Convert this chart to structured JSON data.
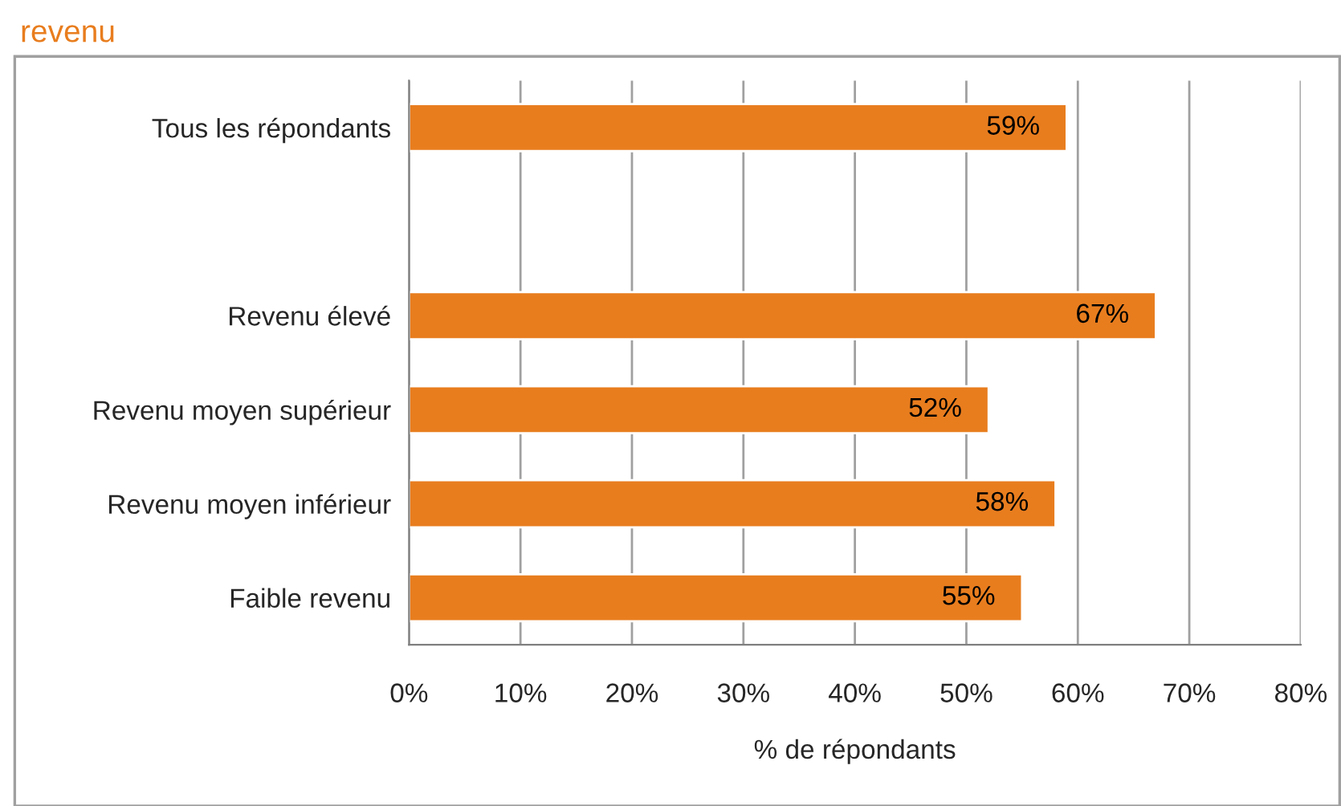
{
  "chart_data": {
    "type": "bar",
    "orientation": "horizontal",
    "title": "revenu",
    "xlabel": "% de répondants",
    "categories": [
      "Tous les répondants",
      null,
      "Revenu élevé",
      "Revenu moyen supérieur",
      "Revenu moyen inférieur",
      "Faible revenu"
    ],
    "values": [
      59,
      null,
      67,
      52,
      58,
      55
    ],
    "value_labels": [
      "59%",
      null,
      "67%",
      "52%",
      "58%",
      "55%"
    ],
    "color": "#e87d1e",
    "xlim": [
      0,
      80
    ],
    "xticks": [
      {
        "value": 0,
        "label": "0%"
      },
      {
        "value": 10,
        "label": "10%"
      },
      {
        "value": 20,
        "label": "20%"
      },
      {
        "value": 30,
        "label": "30%"
      },
      {
        "value": 40,
        "label": "40%"
      },
      {
        "value": 50,
        "label": "50%"
      },
      {
        "value": 60,
        "label": "60%"
      },
      {
        "value": 70,
        "label": "70%"
      },
      {
        "value": 80,
        "label": "80%"
      }
    ],
    "grid": "x",
    "legend": false
  }
}
